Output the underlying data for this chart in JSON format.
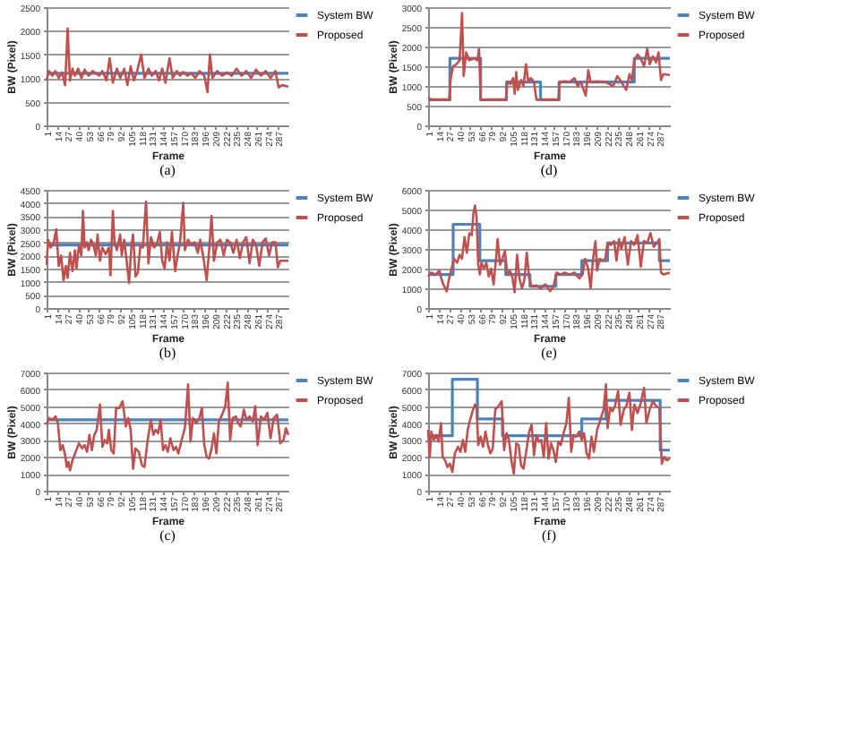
{
  "chart_data": [
    {
      "type": "line",
      "title": "(a)",
      "xlabel": "Frame",
      "ylabel": "BW (Pixel)",
      "xlim": [
        1,
        300
      ],
      "xticks": [
        1,
        14,
        27,
        40,
        53,
        66,
        79,
        92,
        105,
        118,
        131,
        144,
        157,
        170,
        183,
        196,
        209,
        222,
        235,
        248,
        261,
        274,
        287
      ],
      "ylim": [
        0,
        2500
      ],
      "yticks": [
        0,
        500,
        1000,
        1500,
        2000,
        2500
      ],
      "grid": "y",
      "legend": "right",
      "series": [
        {
          "name": "System BW",
          "color": "#4f81bd",
          "type": "step",
          "x": [
            1,
            300
          ],
          "values": [
            1100,
            1100
          ]
        },
        {
          "name": "Proposed",
          "color": "#c0504d",
          "type": "line",
          "x": [
            1,
            4,
            8,
            12,
            16,
            20,
            24,
            27,
            30,
            33,
            36,
            40,
            44,
            48,
            53,
            58,
            62,
            66,
            70,
            75,
            79,
            83,
            88,
            92,
            97,
            101,
            105,
            109,
            113,
            118,
            122,
            127,
            131,
            136,
            140,
            144,
            148,
            153,
            157,
            162,
            166,
            170,
            175,
            180,
            185,
            190,
            196,
            200,
            203,
            206,
            212,
            218,
            224,
            230,
            236,
            242,
            248,
            254,
            260,
            266,
            272,
            278,
            284,
            288,
            292,
            300
          ],
          "values": [
            950,
            1150,
            1050,
            1150,
            1000,
            1120,
            850,
            2050,
            950,
            1200,
            1050,
            1200,
            1000,
            1180,
            1050,
            1150,
            1100,
            1050,
            1150,
            950,
            1420,
            900,
            1200,
            1000,
            1200,
            850,
            1250,
            950,
            1150,
            1500,
            1000,
            1200,
            1050,
            1150,
            950,
            1200,
            900,
            1420,
            1000,
            1150,
            1050,
            1130,
            1050,
            1100,
            1000,
            1150,
            1050,
            700,
            1500,
            1000,
            1150,
            1050,
            1120,
            1050,
            1200,
            1050,
            1150,
            1000,
            1180,
            1050,
            1150,
            1000,
            1150,
            800,
            850,
            820
          ]
        }
      ]
    },
    {
      "type": "line",
      "title": "(d)",
      "xlabel": "Frame",
      "ylabel": "BW (Pixel)",
      "xlim": [
        1,
        300
      ],
      "xticks": [
        1,
        14,
        27,
        40,
        53,
        66,
        79,
        92,
        105,
        118,
        131,
        144,
        157,
        170,
        183,
        196,
        209,
        222,
        235,
        248,
        261,
        274,
        287
      ],
      "ylim": [
        0,
        3000
      ],
      "yticks": [
        0,
        500,
        1000,
        1500,
        2000,
        2500,
        3000
      ],
      "grid": "y",
      "legend": "right",
      "series": [
        {
          "name": "System BW",
          "color": "#4f81bd",
          "type": "step",
          "x": [
            1,
            28,
            66,
            98,
            140,
            163,
            256,
            300
          ],
          "values": [
            650,
            1700,
            650,
            1100,
            650,
            1100,
            1700,
            1700
          ]
        },
        {
          "name": "Proposed",
          "color": "#c0504d",
          "type": "line",
          "x": [
            1,
            5,
            27,
            29,
            32,
            36,
            40,
            43,
            45,
            48,
            52,
            58,
            62,
            64,
            66,
            80,
            97,
            99,
            103,
            106,
            108,
            110,
            112,
            116,
            119,
            122,
            125,
            128,
            132,
            135,
            150,
            162,
            164,
            170,
            176,
            182,
            186,
            190,
            196,
            199,
            202,
            210,
            220,
            230,
            235,
            240,
            246,
            250,
            253,
            256,
            260,
            264,
            268,
            272,
            275,
            279,
            283,
            286,
            289,
            292,
            300
          ],
          "values": [
            700,
            650,
            650,
            1200,
            1500,
            1550,
            1650,
            2850,
            1250,
            1850,
            1650,
            1700,
            1650,
            1950,
            650,
            650,
            650,
            1100,
            1050,
            1200,
            800,
            1350,
            900,
            1150,
            1000,
            1550,
            1100,
            1200,
            1100,
            650,
            650,
            650,
            1100,
            1120,
            1100,
            1200,
            1000,
            1100,
            750,
            1400,
            1100,
            1120,
            1100,
            1000,
            1250,
            1100,
            900,
            1300,
            1150,
            1650,
            1800,
            1700,
            1500,
            1950,
            1550,
            1750,
            1600,
            1850,
            1150,
            1300,
            1280
          ]
        }
      ]
    },
    {
      "type": "line",
      "title": "(b)",
      "xlabel": "Frame",
      "ylabel": "BW (Pixel)",
      "xlim": [
        1,
        300
      ],
      "xticks": [
        1,
        14,
        27,
        40,
        53,
        66,
        79,
        92,
        105,
        118,
        131,
        144,
        157,
        170,
        183,
        196,
        209,
        222,
        235,
        248,
        261,
        274,
        287
      ],
      "ylim": [
        0,
        4500
      ],
      "yticks": [
        0,
        500,
        1000,
        1500,
        2000,
        2500,
        3000,
        3500,
        4000,
        4500
      ],
      "grid": "y",
      "legend": "right",
      "series": [
        {
          "name": "System BW",
          "color": "#4f81bd",
          "type": "step",
          "x": [
            1,
            300
          ],
          "values": [
            2400,
            2400
          ]
        },
        {
          "name": "Proposed",
          "color": "#c0504d",
          "type": "line",
          "x": [
            1,
            3,
            6,
            10,
            13,
            16,
            19,
            22,
            25,
            27,
            30,
            33,
            36,
            38,
            41,
            44,
            46,
            48,
            51,
            53,
            56,
            59,
            62,
            64,
            67,
            70,
            74,
            78,
            80,
            83,
            85,
            88,
            92,
            94,
            97,
            100,
            103,
            106,
            108,
            111,
            114,
            117,
            120,
            124,
            127,
            130,
            134,
            138,
            141,
            144,
            147,
            150,
            153,
            156,
            160,
            163,
            166,
            170,
            172,
            176,
            180,
            184,
            188,
            191,
            195,
            199,
            202,
            205,
            208,
            212,
            216,
            220,
            224,
            228,
            232,
            236,
            240,
            244,
            248,
            252,
            256,
            260,
            264,
            268,
            272,
            276,
            280,
            284,
            287,
            290,
            300
          ],
          "values": [
            1650,
            2600,
            2300,
            2500,
            3000,
            1600,
            2000,
            1050,
            1600,
            1150,
            2100,
            1400,
            2200,
            1500,
            2400,
            2000,
            3700,
            2300,
            2500,
            2200,
            2600,
            2400,
            2000,
            2800,
            1800,
            2300,
            2050,
            2300,
            1250,
            3700,
            2500,
            2200,
            2800,
            2000,
            2600,
            1800,
            950,
            2400,
            2800,
            1200,
            1350,
            2400,
            2300,
            4050,
            1700,
            2700,
            2300,
            2500,
            2900,
            1800,
            1500,
            2500,
            1800,
            2900,
            1400,
            2000,
            2500,
            4000,
            2200,
            2600,
            2400,
            2500,
            2100,
            2600,
            1900,
            1050,
            2200,
            3500,
            1800,
            2500,
            2600,
            2000,
            2600,
            2500,
            2100,
            2600,
            1900,
            2500,
            2700,
            1700,
            2600,
            2400,
            1600,
            2500,
            2650,
            2000,
            2500,
            2500,
            1550,
            1800,
            1800
          ]
        }
      ]
    },
    {
      "type": "line",
      "title": "(e)",
      "xlabel": "Frame",
      "ylabel": "BW (Pixel)",
      "xlim": [
        1,
        300
      ],
      "xticks": [
        1,
        14,
        27,
        40,
        53,
        66,
        79,
        92,
        105,
        118,
        131,
        144,
        157,
        170,
        183,
        196,
        209,
        222,
        235,
        248,
        261,
        274,
        287
      ],
      "ylim": [
        0,
        6000
      ],
      "yticks": [
        0,
        1000,
        2000,
        3000,
        4000,
        5000,
        6000
      ],
      "grid": "y",
      "legend": "right",
      "series": [
        {
          "name": "System BW",
          "color": "#4f81bd",
          "type": "step",
          "x": [
            1,
            32,
            65,
            97,
            127,
            159,
            191,
            223,
            287,
            300
          ],
          "values": [
            1700,
            4250,
            2400,
            1700,
            1100,
            1700,
            2400,
            3300,
            2400,
            2400
          ]
        },
        {
          "name": "Proposed",
          "color": "#c0504d",
          "type": "line",
          "x": [
            1,
            5,
            10,
            15,
            18,
            22,
            24,
            27,
            30,
            33,
            37,
            40,
            43,
            46,
            49,
            52,
            55,
            57,
            59,
            61,
            63,
            65,
            67,
            70,
            73,
            76,
            79,
            82,
            85,
            87,
            90,
            93,
            96,
            99,
            102,
            105,
            108,
            111,
            114,
            117,
            120,
            123,
            126,
            129,
            135,
            140,
            146,
            152,
            156,
            160,
            165,
            170,
            176,
            182,
            188,
            192,
            195,
            199,
            202,
            205,
            208,
            210,
            213,
            217,
            220,
            223,
            227,
            231,
            234,
            237,
            240,
            244,
            248,
            252,
            256,
            260,
            264,
            268,
            272,
            276,
            280,
            284,
            287,
            289,
            292,
            300
          ],
          "values": [
            1600,
            1800,
            1700,
            1900,
            1400,
            1000,
            850,
            1500,
            2000,
            2500,
            2300,
            2700,
            2500,
            3600,
            2800,
            3800,
            3700,
            4800,
            5200,
            4600,
            2200,
            1700,
            2300,
            2000,
            2300,
            1600,
            2000,
            1200,
            2500,
            3500,
            2200,
            2500,
            2900,
            1700,
            1900,
            1600,
            800,
            2700,
            1500,
            1000,
            1400,
            2800,
            1500,
            1100,
            1150,
            1000,
            1200,
            850,
            1100,
            1800,
            1700,
            1800,
            1700,
            1800,
            1500,
            1700,
            2500,
            2000,
            1000,
            2500,
            3400,
            1900,
            2500,
            2400,
            2500,
            3300,
            3200,
            3400,
            2400,
            3500,
            3000,
            3600,
            2200,
            3400,
            3200,
            3700,
            2100,
            3400,
            3300,
            3800,
            3100,
            3300,
            3500,
            1800,
            1700,
            1800
          ]
        }
      ]
    },
    {
      "type": "line",
      "title": "(c)",
      "xlabel": "Frame",
      "ylabel": "BW (Pixel)",
      "xlim": [
        1,
        300
      ],
      "xticks": [
        1,
        14,
        27,
        40,
        53,
        66,
        79,
        92,
        105,
        118,
        131,
        144,
        157,
        170,
        183,
        196,
        209,
        222,
        235,
        248,
        261,
        274,
        287
      ],
      "ylim": [
        0,
        7000
      ],
      "yticks": [
        0,
        1000,
        2000,
        3000,
        4000,
        5000,
        6000,
        7000
      ],
      "grid": "y",
      "legend": "right",
      "series": [
        {
          "name": "System BW",
          "color": "#4f81bd",
          "type": "step",
          "x": [
            1,
            300
          ],
          "values": [
            4200,
            4200
          ]
        },
        {
          "name": "Proposed",
          "color": "#c0504d",
          "type": "line",
          "x": [
            1,
            4,
            8,
            12,
            15,
            18,
            21,
            24,
            26,
            28,
            30,
            33,
            37,
            41,
            45,
            48,
            51,
            54,
            57,
            60,
            63,
            67,
            70,
            73,
            76,
            78,
            81,
            84,
            87,
            91,
            95,
            99,
            102,
            105,
            108,
            111,
            115,
            119,
            122,
            126,
            130,
            133,
            136,
            139,
            142,
            145,
            148,
            151,
            154,
            158,
            161,
            164,
            168,
            172,
            176,
            179,
            182,
            186,
            190,
            193,
            196,
            199,
            202,
            205,
            208,
            211,
            214,
            218,
            222,
            225,
            228,
            231,
            235,
            238,
            241,
            245,
            248,
            252,
            256,
            259,
            262,
            266,
            270,
            274,
            278,
            282,
            286,
            288,
            290,
            294,
            297,
            300
          ],
          "values": [
            3900,
            4300,
            4200,
            4400,
            4000,
            2400,
            2700,
            2100,
            1400,
            1700,
            1200,
            1800,
            2300,
            2800,
            2500,
            2700,
            2300,
            3300,
            2400,
            3300,
            3600,
            5100,
            2600,
            3000,
            2800,
            3600,
            2400,
            2200,
            4900,
            4900,
            5300,
            3800,
            4300,
            3600,
            1300,
            2500,
            2300,
            1500,
            1400,
            3000,
            4200,
            3300,
            3600,
            3400,
            4200,
            2400,
            2700,
            2300,
            3100,
            2400,
            2600,
            2200,
            3000,
            3700,
            6300,
            2900,
            4300,
            4000,
            4300,
            4900,
            2700,
            2000,
            1900,
            2500,
            3400,
            2200,
            4100,
            4500,
            5000,
            6400,
            3000,
            4300,
            4400,
            4000,
            3800,
            4800,
            4200,
            4400,
            4100,
            5000,
            2700,
            4400,
            4200,
            4600,
            3100,
            4300,
            4500,
            3700,
            2800,
            3000,
            3700,
            3300
          ]
        }
      ]
    },
    {
      "type": "line",
      "title": "(f)",
      "xlabel": "Frame",
      "ylabel": "BW (Pixel)",
      "xlim": [
        1,
        300
      ],
      "xticks": [
        1,
        14,
        27,
        40,
        53,
        66,
        79,
        92,
        105,
        118,
        131,
        144,
        157,
        170,
        183,
        196,
        209,
        222,
        235,
        248,
        261,
        274,
        287
      ],
      "ylim": [
        0,
        7000
      ],
      "yticks": [
        0,
        1000,
        2000,
        3000,
        4000,
        5000,
        6000,
        7000
      ],
      "grid": "y",
      "legend": "right",
      "series": [
        {
          "name": "System BW",
          "color": "#4f81bd",
          "type": "step",
          "x": [
            1,
            31,
            62,
            93,
            191,
            221,
            288,
            300
          ],
          "values": [
            3250,
            6600,
            4250,
            3250,
            4250,
            5350,
            2400,
            2400
          ]
        },
        {
          "name": "Proposed",
          "color": "#c0504d",
          "type": "line",
          "x": [
            1,
            3,
            5,
            8,
            11,
            14,
            17,
            19,
            22,
            25,
            28,
            31,
            34,
            38,
            41,
            44,
            47,
            50,
            53,
            56,
            59,
            61,
            63,
            66,
            69,
            72,
            75,
            78,
            81,
            84,
            88,
            92,
            95,
            98,
            101,
            104,
            107,
            110,
            113,
            116,
            119,
            122,
            126,
            129,
            132,
            135,
            138,
            141,
            144,
            147,
            150,
            153,
            156,
            159,
            162,
            165,
            168,
            172,
            175,
            178,
            181,
            184,
            188,
            191,
            194,
            197,
            200,
            203,
            206,
            210,
            214,
            218,
            221,
            223,
            226,
            229,
            232,
            236,
            239,
            243,
            246,
            250,
            253,
            256,
            260,
            264,
            268,
            271,
            275,
            279,
            283,
            287,
            290,
            293,
            296,
            300
          ],
          "values": [
            3600,
            2000,
            3500,
            3000,
            3300,
            2900,
            4000,
            2000,
            1800,
            1400,
            1600,
            1100,
            2200,
            2600,
            2300,
            3000,
            2300,
            3600,
            4200,
            4700,
            5100,
            4900,
            2700,
            3200,
            2600,
            3500,
            2700,
            2200,
            2500,
            4800,
            5000,
            5300,
            2400,
            3400,
            3000,
            1800,
            1000,
            2800,
            2700,
            1500,
            1300,
            2200,
            3500,
            3900,
            2100,
            3300,
            2900,
            3000,
            2000,
            4000,
            1900,
            2800,
            2400,
            1700,
            2900,
            2700,
            3300,
            4000,
            5500,
            2300,
            3300,
            3200,
            3500,
            3000,
            3400,
            2200,
            1900,
            3200,
            2300,
            3600,
            4200,
            4800,
            6300,
            3700,
            4900,
            4700,
            5000,
            5900,
            3900,
            4800,
            5000,
            5800,
            3600,
            5100,
            4600,
            5200,
            6100,
            4000,
            4800,
            5300,
            5000,
            4900,
            1600,
            2000,
            1800,
            1900
          ]
        }
      ]
    }
  ]
}
